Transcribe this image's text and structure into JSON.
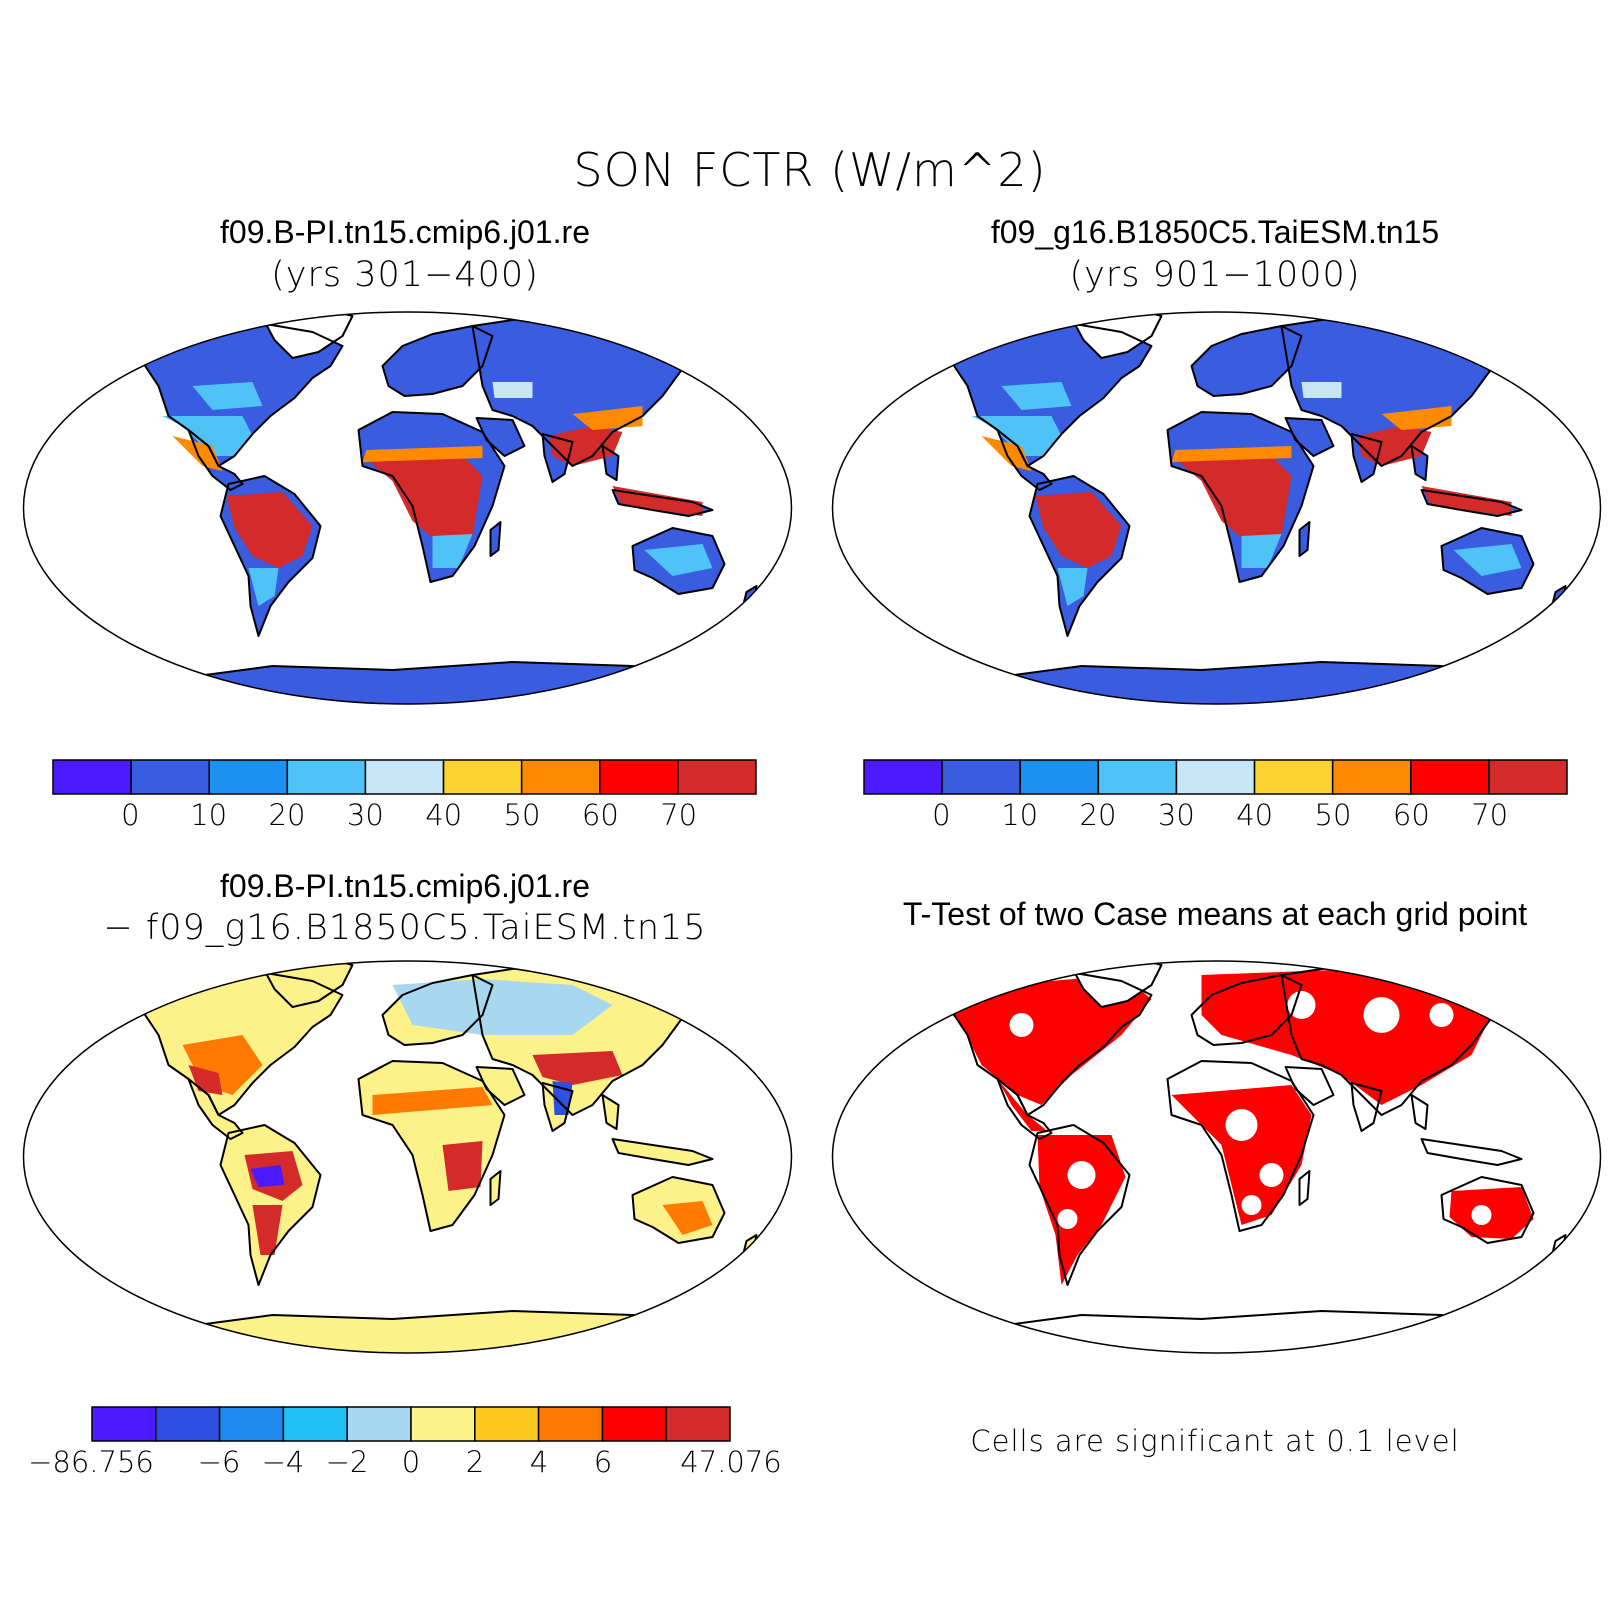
{
  "main_title": "SON FCTR (W/m^2)",
  "panels": {
    "top_left": {
      "title": "f09.B-PI.tn15.cmip6.j01.re",
      "subtitle": "(yrs 301−400)"
    },
    "top_right": {
      "title": "f09_g16.B1850C5.TaiESM.tn15",
      "subtitle": "(yrs 901−1000)"
    },
    "bottom_left": {
      "title": "f09.B-PI.tn15.cmip6.j01.re",
      "subtitle": "− f09_g16.B1850C5.TaiESM.tn15"
    },
    "bottom_right": {
      "title": "T-Test of two Case means at each grid point",
      "note": "Cells are significant at 0.1 level"
    }
  },
  "colorbar_abs": {
    "colors": [
      "#4b1aff",
      "#3a5ce0",
      "#1e90f0",
      "#4fc3f7",
      "#c7e6f7",
      "#fbd431",
      "#ff8a00",
      "#ff0000",
      "#d42a2a"
    ],
    "labels": [
      "0",
      "10",
      "20",
      "30",
      "40",
      "50",
      "60",
      "70"
    ]
  },
  "colorbar_diff": {
    "colors": [
      "#4b1aff",
      "#2d50e0",
      "#1e8af0",
      "#1ec0f5",
      "#a8d8f0",
      "#fdf28a",
      "#ffc61e",
      "#ff7a00",
      "#ff0000",
      "#d42a2a"
    ],
    "labels": [
      "−86.756",
      "−6",
      "−4",
      "−2",
      "0",
      "2",
      "4",
      "6",
      "47.076"
    ],
    "label_positions": [
      0,
      2,
      3,
      4,
      5,
      6,
      7,
      8,
      10
    ]
  },
  "map_colors": {
    "cold": "#3a5ce0",
    "mid": "#4fc3f7",
    "warm": "#ff8a00",
    "hot": "#d42a2a",
    "yellow": "#fbd431",
    "diff_base": "#fdf28a",
    "diff_pos": "#ff7a00",
    "diff_hot": "#d42a2a",
    "diff_neg": "#a8d8f0",
    "diff_deepneg": "#4b1aff",
    "sig": "#ff0000"
  }
}
